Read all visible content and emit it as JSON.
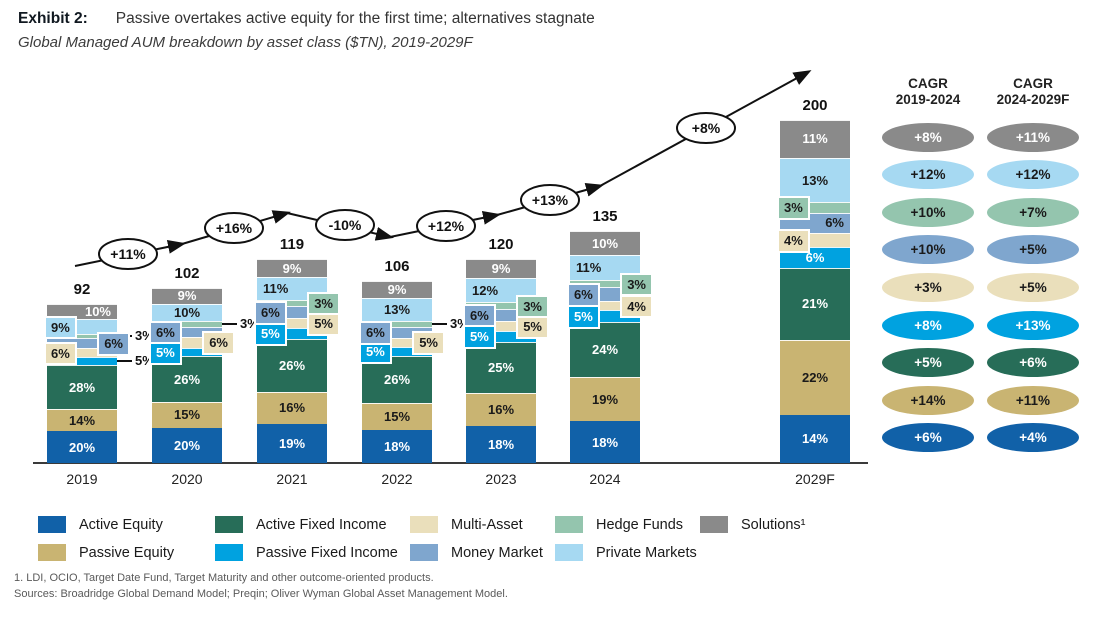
{
  "header": {
    "exhibit_label": "Exhibit 2:",
    "title": "Passive overtakes active equity for the first time; alternatives stagnate",
    "subtitle": "Global Managed AUM breakdown by asset class ($TN), 2019-2029F"
  },
  "chart_data": {
    "type": "bar",
    "stacked": true,
    "categories": [
      "2019",
      "2020",
      "2021",
      "2022",
      "2023",
      "2024",
      "2029F"
    ],
    "totals": [
      92,
      102,
      119,
      106,
      120,
      135,
      200
    ],
    "series": [
      {
        "name": "Active Equity",
        "color": "#1161a8",
        "text_color": "#ffffff",
        "values": [
          20,
          20,
          19,
          18,
          18,
          18,
          14
        ]
      },
      {
        "name": "Passive Equity",
        "color": "#c9b472",
        "text_color": "#1a1a1a",
        "values": [
          14,
          15,
          16,
          15,
          16,
          19,
          22
        ]
      },
      {
        "name": "Active Fixed Income",
        "color": "#276d58",
        "text_color": "#ffffff",
        "values": [
          28,
          26,
          26,
          26,
          25,
          24,
          21
        ]
      },
      {
        "name": "Passive Fixed Income",
        "color": "#00a2e0",
        "text_color": "#ffffff",
        "values": [
          5,
          5,
          5,
          5,
          5,
          5,
          6
        ]
      },
      {
        "name": "Multi-Asset",
        "color": "#eadfbb",
        "text_color": "#1a1a1a",
        "values": [
          6,
          6,
          5,
          5,
          5,
          4,
          4
        ]
      },
      {
        "name": "Money Market",
        "color": "#7fa6ce",
        "text_color": "#1a1a1a",
        "values": [
          6,
          6,
          6,
          6,
          6,
          6,
          6
        ]
      },
      {
        "name": "Hedge Funds",
        "color": "#94c5ae",
        "text_color": "#1a1a1a",
        "values": [
          3,
          3,
          3,
          3,
          3,
          3,
          3
        ]
      },
      {
        "name": "Private Markets",
        "color": "#a6d9f2",
        "text_color": "#1a1a1a",
        "values": [
          9,
          10,
          11,
          13,
          12,
          11,
          13
        ]
      },
      {
        "name": "Solutions",
        "color": "#8a8a8a",
        "text_color": "#ffffff",
        "values": [
          10,
          9,
          9,
          9,
          9,
          10,
          11
        ]
      }
    ],
    "value_suffix": "%",
    "growth_labels": [
      "+11%",
      "+16%",
      "-10%",
      "+12%",
      "+13%",
      "+8%"
    ],
    "label_modes": [
      [
        "in",
        "in",
        "in",
        "callout",
        "chip-left",
        "chip-right",
        "callout",
        "chip-left",
        "in-right"
      ],
      [
        "in",
        "in",
        "in",
        "chip-left",
        "chip-right",
        "chip-left",
        "callout",
        "in",
        "in"
      ],
      [
        "in",
        "in",
        "in",
        "chip-left",
        "chip-right",
        "chip-left",
        "chip-right",
        "in-left",
        "in"
      ],
      [
        "in",
        "in",
        "in",
        "chip-left",
        "chip-right",
        "chip-left",
        "callout",
        "in",
        "in"
      ],
      [
        "in",
        "in",
        "in",
        "chip-left",
        "chip-right",
        "chip-left",
        "chip-right",
        "in-left",
        "in"
      ],
      [
        "in",
        "in",
        "in",
        "chip-left",
        "chip-right",
        "chip-left",
        "chip-right",
        "in-left",
        "in"
      ],
      [
        "in",
        "in",
        "in",
        "in",
        "chip-left",
        "in-right",
        "chip-left",
        "in",
        "in"
      ]
    ],
    "grid": false,
    "legend_position": "bottom"
  },
  "cagr_panel": {
    "columns": [
      {
        "title_line1": "CAGR",
        "title_line2": "2019-2024",
        "values": [
          "+8%",
          "+12%",
          "+10%",
          "+10%",
          "+3%",
          "+8%",
          "+5%",
          "+14%",
          "+6%"
        ]
      },
      {
        "title_line1": "CAGR",
        "title_line2": "2024-2029F",
        "values": [
          "+11%",
          "+12%",
          "+7%",
          "+5%",
          "+5%",
          "+13%",
          "+6%",
          "+11%",
          "+4%"
        ]
      }
    ],
    "row_series_order": [
      "Solutions",
      "Private Markets",
      "Hedge Funds",
      "Money Market",
      "Multi-Asset",
      "Passive Fixed Income",
      "Active Fixed Income",
      "Passive Equity",
      "Active Equity"
    ]
  },
  "legend": {
    "rows": [
      [
        "Active Equity",
        "Active Fixed Income",
        "Multi-Asset",
        "Hedge Funds",
        "Solutions¹"
      ],
      [
        "Passive Equity",
        "Passive Fixed Income",
        "Money Market",
        "Private Markets"
      ]
    ]
  },
  "footnotes": {
    "line1": "1. LDI, OCIO, Target Date Fund, Target Maturity and other outcome-oriented products.",
    "line2": "Sources: Broadridge Global Demand Model; Preqin; Oliver Wyman Global Asset Management Model."
  }
}
